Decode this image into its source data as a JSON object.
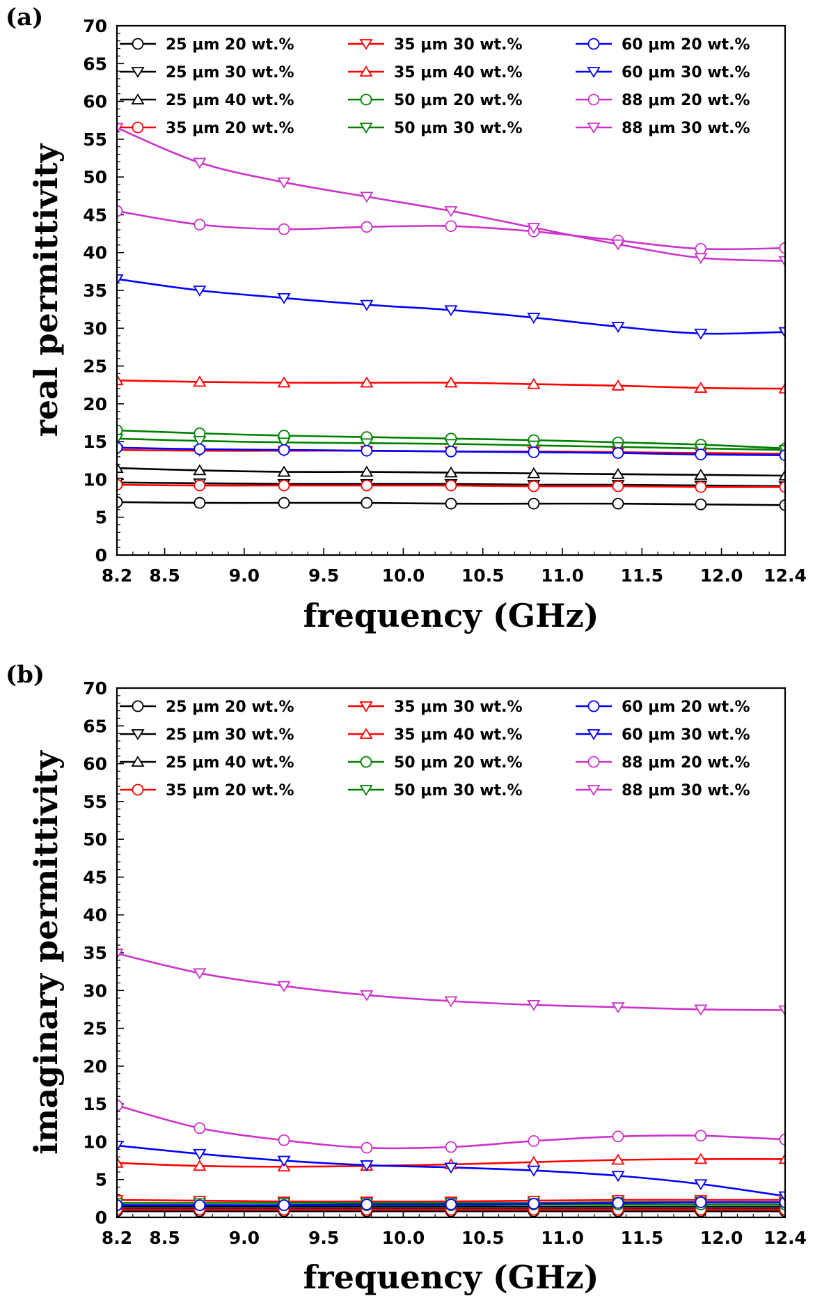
{
  "chart_data": [
    {
      "panel": "(a)",
      "type": "line",
      "xlabel": "frequency (GHz)",
      "ylabel": "real permittivity",
      "xlim": [
        8.2,
        12.4
      ],
      "ylim": [
        0,
        70
      ],
      "xticks": [
        "8.2",
        "8.5",
        "9.0",
        "9.5",
        "10.0",
        "10.5",
        "11.0",
        "11.5",
        "12.0",
        "12.4"
      ],
      "yticks": [
        "0",
        "5",
        "10",
        "15",
        "20",
        "25",
        "30",
        "35",
        "40",
        "45",
        "50",
        "55",
        "60",
        "65",
        "70"
      ],
      "legend_position": "top",
      "x": [
        8.2,
        8.72,
        9.25,
        9.77,
        10.3,
        10.82,
        11.35,
        11.87,
        12.4
      ],
      "series": [
        {
          "name": "25 μm 20 wt.%",
          "color": "#000000",
          "marker": "circle",
          "values": [
            7.0,
            6.9,
            6.9,
            6.9,
            6.8,
            6.8,
            6.8,
            6.7,
            6.6
          ]
        },
        {
          "name": "25 μm 30 wt.%",
          "color": "#000000",
          "marker": "triangle-down",
          "values": [
            9.6,
            9.5,
            9.4,
            9.4,
            9.4,
            9.3,
            9.3,
            9.2,
            9.1
          ]
        },
        {
          "name": "25 μm 40 wt.%",
          "color": "#000000",
          "marker": "triangle-up",
          "values": [
            11.5,
            11.2,
            11.0,
            11.0,
            10.9,
            10.8,
            10.7,
            10.6,
            10.5
          ]
        },
        {
          "name": "35 μm 20 wt.%",
          "color": "#ff0000",
          "marker": "circle",
          "values": [
            9.3,
            9.2,
            9.2,
            9.2,
            9.2,
            9.1,
            9.1,
            9.0,
            9.0
          ]
        },
        {
          "name": "35 μm 30 wt.%",
          "color": "#ff0000",
          "marker": "triangle-down",
          "values": [
            13.9,
            13.8,
            13.8,
            13.8,
            13.7,
            13.7,
            13.6,
            13.5,
            13.4
          ]
        },
        {
          "name": "35 μm 40 wt.%",
          "color": "#ff0000",
          "marker": "triangle-up",
          "values": [
            23.1,
            22.9,
            22.8,
            22.8,
            22.8,
            22.6,
            22.4,
            22.1,
            22.0
          ]
        },
        {
          "name": "50 μm 20 wt.%",
          "color": "#008000",
          "marker": "circle",
          "values": [
            16.5,
            16.1,
            15.8,
            15.6,
            15.4,
            15.2,
            14.9,
            14.6,
            14.1
          ]
        },
        {
          "name": "50 μm 30 wt.%",
          "color": "#008000",
          "marker": "triangle-down",
          "values": [
            15.4,
            15.1,
            14.9,
            14.8,
            14.7,
            14.5,
            14.3,
            14.1,
            13.9
          ]
        },
        {
          "name": "60 μm 20 wt.%",
          "color": "#0000ff",
          "marker": "circle",
          "values": [
            14.2,
            14.0,
            13.9,
            13.8,
            13.7,
            13.6,
            13.5,
            13.3,
            13.2
          ]
        },
        {
          "name": "60 μm 30 wt.%",
          "color": "#0000ff",
          "marker": "triangle-down",
          "values": [
            36.5,
            35.0,
            34.0,
            33.1,
            32.4,
            31.4,
            30.2,
            29.3,
            29.5
          ]
        },
        {
          "name": "88 μm 20 wt.%",
          "color": "#cc33cc",
          "marker": "circle",
          "values": [
            45.5,
            43.7,
            43.1,
            43.4,
            43.5,
            42.8,
            41.6,
            40.5,
            40.6
          ]
        },
        {
          "name": "88 μm 30 wt.%",
          "color": "#cc33cc",
          "marker": "triangle-down",
          "values": [
            56.5,
            51.9,
            49.3,
            47.4,
            45.5,
            43.3,
            41.1,
            39.3,
            38.9
          ]
        }
      ]
    },
    {
      "panel": "(b)",
      "type": "line",
      "xlabel": "frequency (GHz)",
      "ylabel": "imaginary permittivity",
      "xlim": [
        8.2,
        12.4
      ],
      "ylim": [
        0,
        70
      ],
      "xticks": [
        "8.2",
        "8.5",
        "9.0",
        "9.5",
        "10.0",
        "10.5",
        "11.0",
        "11.5",
        "12.0",
        "12.4"
      ],
      "yticks": [
        "0",
        "5",
        "10",
        "15",
        "20",
        "25",
        "30",
        "35",
        "40",
        "45",
        "50",
        "55",
        "60",
        "65",
        "70"
      ],
      "legend_position": "top",
      "x": [
        8.2,
        8.72,
        9.25,
        9.77,
        10.3,
        10.82,
        11.35,
        11.87,
        12.4
      ],
      "series": [
        {
          "name": "25 μm 20 wt.%",
          "color": "#000000",
          "marker": "circle",
          "values": [
            0.8,
            0.8,
            0.8,
            0.8,
            0.8,
            0.8,
            0.8,
            0.8,
            0.8
          ]
        },
        {
          "name": "25 μm 30 wt.%",
          "color": "#000000",
          "marker": "triangle-down",
          "values": [
            1.1,
            1.1,
            1.1,
            1.1,
            1.1,
            1.1,
            1.1,
            1.1,
            1.1
          ]
        },
        {
          "name": "25 μm 40 wt.%",
          "color": "#000000",
          "marker": "triangle-up",
          "values": [
            1.4,
            1.4,
            1.4,
            1.4,
            1.4,
            1.4,
            1.4,
            1.4,
            1.4
          ]
        },
        {
          "name": "35 μm 20 wt.%",
          "color": "#ff0000",
          "marker": "circle",
          "values": [
            1.0,
            1.0,
            1.0,
            1.0,
            1.0,
            1.0,
            1.0,
            1.0,
            1.0
          ]
        },
        {
          "name": "35 μm 30 wt.%",
          "color": "#ff0000",
          "marker": "triangle-down",
          "values": [
            2.3,
            2.2,
            2.1,
            2.1,
            2.1,
            2.2,
            2.3,
            2.3,
            2.3
          ]
        },
        {
          "name": "35 μm 40 wt.%",
          "color": "#ff0000",
          "marker": "triangle-up",
          "values": [
            7.2,
            6.8,
            6.7,
            6.8,
            7.0,
            7.3,
            7.6,
            7.7,
            7.7
          ]
        },
        {
          "name": "50 μm 20 wt.%",
          "color": "#008000",
          "marker": "circle",
          "values": [
            1.6,
            1.6,
            1.6,
            1.6,
            1.6,
            1.7,
            1.7,
            1.7,
            1.7
          ]
        },
        {
          "name": "50 μm 30 wt.%",
          "color": "#008000",
          "marker": "triangle-down",
          "values": [
            1.9,
            1.9,
            1.9,
            1.9,
            1.9,
            1.9,
            2.0,
            2.0,
            2.0
          ]
        },
        {
          "name": "60 μm 20 wt.%",
          "color": "#0000ff",
          "marker": "circle",
          "values": [
            1.6,
            1.6,
            1.6,
            1.7,
            1.7,
            1.8,
            1.9,
            2.0,
            2.0
          ]
        },
        {
          "name": "60 μm 30 wt.%",
          "color": "#0000ff",
          "marker": "triangle-down",
          "values": [
            9.5,
            8.4,
            7.5,
            6.9,
            6.6,
            6.2,
            5.5,
            4.4,
            2.8
          ]
        },
        {
          "name": "88 μm 20 wt.%",
          "color": "#cc33cc",
          "marker": "circle",
          "values": [
            14.8,
            11.8,
            10.2,
            9.2,
            9.3,
            10.1,
            10.7,
            10.8,
            10.3
          ]
        },
        {
          "name": "88 μm 30 wt.%",
          "color": "#cc33cc",
          "marker": "triangle-down",
          "values": [
            34.9,
            32.3,
            30.6,
            29.4,
            28.6,
            28.1,
            27.8,
            27.5,
            27.4
          ]
        }
      ]
    }
  ]
}
